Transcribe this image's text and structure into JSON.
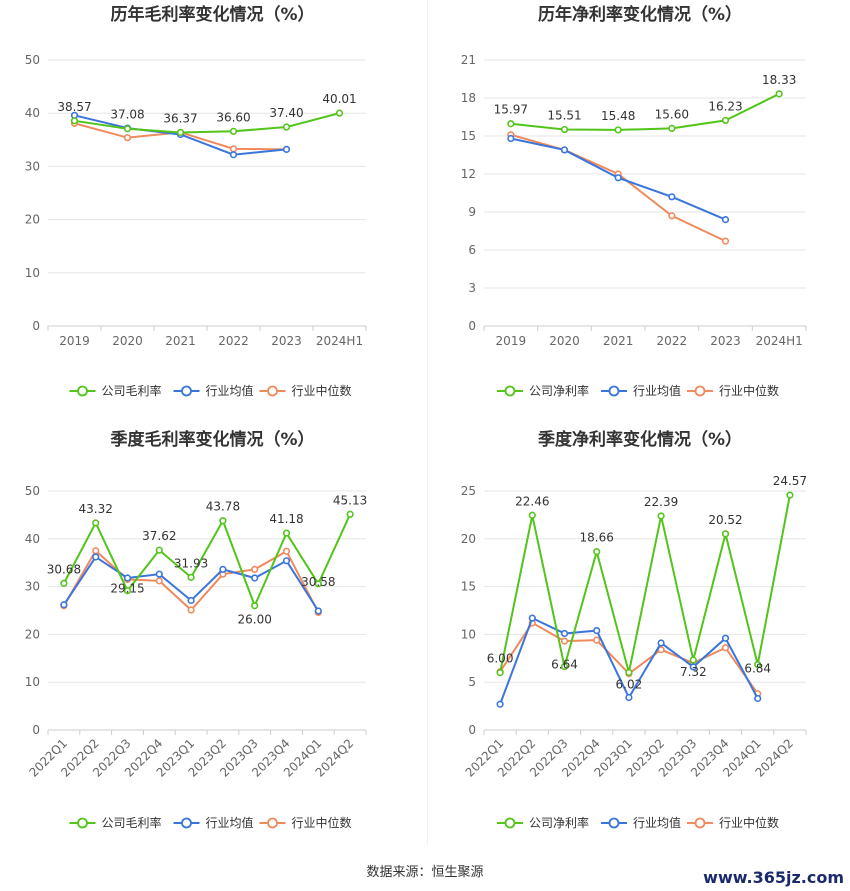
{
  "source_text": "数据来源：恒生聚源",
  "watermark_text": "www.365jz.com",
  "colors": {
    "company": "#52c41a",
    "avg": "#3a75dc",
    "median": "#f08a5d",
    "grid": "#e6e6e6",
    "axis": "#cccccc"
  },
  "chart_data": [
    {
      "type": "line",
      "title": "历年毛利率变化情况（%）",
      "categories": [
        "2019",
        "2020",
        "2021",
        "2022",
        "2023",
        "2024H1"
      ],
      "ylim": [
        0,
        50
      ],
      "yticks": [
        "0",
        "10",
        "20",
        "30",
        "40",
        "50"
      ],
      "rotate_x": false,
      "series": [
        {
          "name": "公司毛利率",
          "role": "company",
          "values": [
            38.57,
            37.08,
            36.37,
            36.6,
            37.4,
            40.01
          ],
          "labels": [
            "38.57",
            "37.08",
            "36.37",
            "36.60",
            "37.40",
            "40.01"
          ]
        },
        {
          "name": "行业均值",
          "role": "avg",
          "values": [
            39.6,
            37.2,
            36.0,
            32.2,
            33.2,
            null
          ]
        },
        {
          "name": "行业中位数",
          "role": "median",
          "values": [
            38.1,
            35.4,
            36.4,
            33.3,
            33.2,
            null
          ]
        }
      ]
    },
    {
      "type": "line",
      "title": "历年净利率变化情况（%）",
      "categories": [
        "2019",
        "2020",
        "2021",
        "2022",
        "2023",
        "2024H1"
      ],
      "ylim": [
        0,
        21
      ],
      "yticks": [
        "0",
        "3",
        "6",
        "9",
        "12",
        "15",
        "18",
        "21"
      ],
      "rotate_x": false,
      "series": [
        {
          "name": "公司净利率",
          "role": "company",
          "values": [
            15.97,
            15.51,
            15.48,
            15.6,
            16.23,
            18.33
          ],
          "labels": [
            "15.97",
            "15.51",
            "15.48",
            "15.60",
            "16.23",
            "18.33"
          ]
        },
        {
          "name": "行业均值",
          "role": "avg",
          "values": [
            14.8,
            13.9,
            11.7,
            10.2,
            8.4,
            null
          ]
        },
        {
          "name": "行业中位数",
          "role": "median",
          "values": [
            15.1,
            13.9,
            12.0,
            8.7,
            6.7,
            null
          ]
        }
      ]
    },
    {
      "type": "line",
      "title": "季度毛利率变化情况（%）",
      "categories": [
        "2022Q1",
        "2022Q2",
        "2022Q3",
        "2022Q4",
        "2023Q1",
        "2023Q2",
        "2023Q3",
        "2023Q4",
        "2024Q1",
        "2024Q2"
      ],
      "ylim": [
        0,
        50
      ],
      "yticks": [
        "0",
        "10",
        "20",
        "30",
        "40",
        "50"
      ],
      "rotate_x": true,
      "series": [
        {
          "name": "公司毛利率",
          "role": "company",
          "values": [
            30.68,
            43.32,
            29.15,
            37.62,
            31.93,
            43.78,
            26.0,
            41.18,
            30.58,
            45.13
          ],
          "labels": [
            "30.68",
            "43.32",
            "29.15",
            "37.62",
            "31.93",
            "43.78",
            "26.00",
            "41.18",
            "30.58",
            "45.13"
          ]
        },
        {
          "name": "行业均值",
          "role": "avg",
          "values": [
            26.2,
            36.2,
            31.8,
            32.6,
            27.1,
            33.6,
            31.8,
            35.4,
            24.9,
            null
          ]
        },
        {
          "name": "行业中位数",
          "role": "median",
          "values": [
            26.0,
            37.5,
            31.5,
            31.2,
            25.1,
            32.6,
            33.6,
            37.4,
            24.6,
            null
          ]
        }
      ]
    },
    {
      "type": "line",
      "title": "季度净利率变化情况（%）",
      "categories": [
        "2022Q1",
        "2022Q2",
        "2022Q3",
        "2022Q4",
        "2023Q1",
        "2023Q2",
        "2023Q3",
        "2023Q4",
        "2024Q1",
        "2024Q2"
      ],
      "ylim": [
        0,
        25
      ],
      "yticks": [
        "0",
        "5",
        "10",
        "15",
        "20",
        "25"
      ],
      "rotate_x": true,
      "series": [
        {
          "name": "公司净利率",
          "role": "company",
          "values": [
            6.0,
            22.46,
            6.64,
            18.66,
            6.02,
            22.39,
            7.32,
            20.52,
            6.84,
            24.57
          ],
          "labels": [
            "6.00",
            "22.46",
            "6.64",
            "18.66",
            "6.02",
            "22.39",
            "7.32",
            "20.52",
            "6.84",
            "24.57"
          ]
        },
        {
          "name": "行业均值",
          "role": "avg",
          "values": [
            2.7,
            11.7,
            10.1,
            10.4,
            3.4,
            9.1,
            6.6,
            9.6,
            3.3,
            null
          ]
        },
        {
          "name": "行业中位数",
          "role": "median",
          "values": [
            6.1,
            11.2,
            9.3,
            9.4,
            5.9,
            8.4,
            7.0,
            8.6,
            3.8,
            null
          ]
        }
      ]
    }
  ]
}
